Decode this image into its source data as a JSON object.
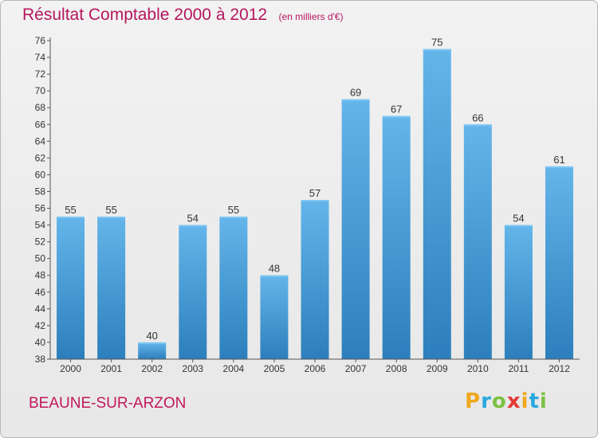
{
  "title": "Résultat Comptable 2000 à 2012",
  "unit_label": "(en milliers d'€)",
  "commune": "BEAUNE-SUR-ARZON",
  "brand": {
    "letters": [
      "P",
      "r",
      "o",
      "x",
      "i",
      "t",
      "i"
    ],
    "colors": [
      "#f0a81c",
      "#29a8de",
      "#7cc142",
      "#e53935",
      "#f0a81c",
      "#29a8de",
      "#7cc142"
    ]
  },
  "colors": {
    "bar_top": "#64b5ea",
    "bar_bottom": "#2c7fbc",
    "title": "#b5175e",
    "commune": "#c2185b"
  },
  "chart_data": {
    "type": "bar",
    "title": "Résultat Comptable 2000 à 2012",
    "xlabel": "",
    "ylabel": "",
    "categories": [
      "2000",
      "2001",
      "2002",
      "2003",
      "2004",
      "2005",
      "2006",
      "2007",
      "2008",
      "2009",
      "2010",
      "2011",
      "2012"
    ],
    "values": [
      55,
      55,
      40,
      54,
      55,
      48,
      57,
      69,
      67,
      75,
      66,
      54,
      61
    ],
    "ylim": [
      38,
      76
    ],
    "yticks": [
      38,
      40,
      42,
      44,
      46,
      48,
      50,
      52,
      54,
      56,
      58,
      60,
      62,
      64,
      66,
      68,
      70,
      72,
      74,
      76
    ],
    "grid": false
  }
}
